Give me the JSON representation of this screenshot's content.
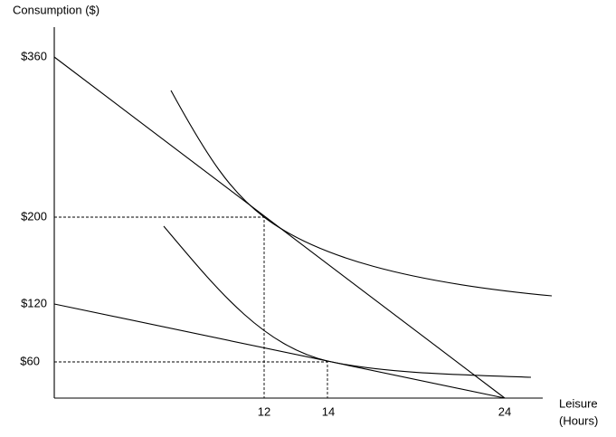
{
  "axes": {
    "y_label": "Consumption ($)",
    "x_label": [
      "Leisure",
      "(Hours)"
    ]
  },
  "y_ticks": [
    "$360",
    "$200",
    "$120",
    "$60"
  ],
  "x_ticks": [
    "12",
    "14",
    "24"
  ]
}
